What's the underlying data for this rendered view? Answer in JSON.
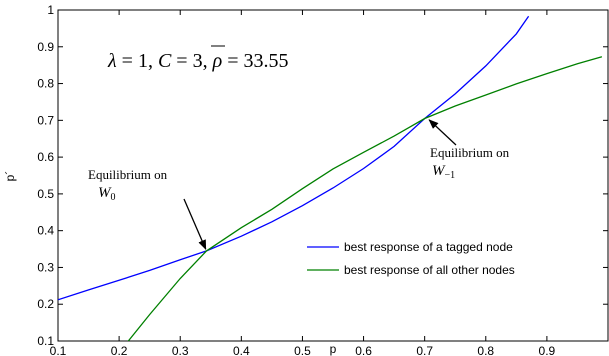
{
  "chart_data": {
    "type": "line",
    "xlabel": "p",
    "ylabel": "p´",
    "xlim": [
      0.1,
      1.0
    ],
    "ylim": [
      0.1,
      1.0
    ],
    "xticks": [
      "0.1",
      "0.2",
      "0.3",
      "0.4",
      "0.5",
      "0.6",
      "0.7",
      "0.8",
      "0.9"
    ],
    "yticks": [
      "0.1",
      "0.2",
      "0.3",
      "0.4",
      "0.5",
      "0.6",
      "0.7",
      "0.8",
      "0.9",
      "1"
    ],
    "grid": false,
    "legend_position": "bottom-right",
    "series": [
      {
        "name": "best response of a tagged node",
        "color": "#0000ff",
        "x": [
          0.1,
          0.15,
          0.2,
          0.25,
          0.3,
          0.343,
          0.4,
          0.45,
          0.5,
          0.55,
          0.6,
          0.65,
          0.7,
          0.75,
          0.8,
          0.85,
          0.87
        ],
        "y": [
          0.212,
          0.239,
          0.265,
          0.292,
          0.321,
          0.345,
          0.385,
          0.424,
          0.468,
          0.516,
          0.569,
          0.629,
          0.705,
          0.772,
          0.848,
          0.935,
          0.983
        ]
      },
      {
        "name": "best response of all other nodes",
        "color": "#008000",
        "x": [
          0.215,
          0.25,
          0.3,
          0.343,
          0.4,
          0.45,
          0.5,
          0.55,
          0.6,
          0.65,
          0.7,
          0.75,
          0.8,
          0.85,
          0.9,
          0.95,
          0.99
        ],
        "y": [
          0.1,
          0.172,
          0.27,
          0.345,
          0.408,
          0.458,
          0.514,
          0.568,
          0.613,
          0.657,
          0.705,
          0.739,
          0.769,
          0.799,
          0.827,
          0.854,
          0.873
        ]
      }
    ],
    "parameter_text": {
      "lambda": "λ",
      "eq": " = 1, ",
      "cbar": "C",
      "eq2": " = 3, ",
      "rho": "ρ",
      "eq3": " = 33.55"
    },
    "annotations": [
      {
        "line1": "Equilibrium on",
        "sym": "W",
        "sub": "0",
        "x": 0.343,
        "y": 0.345
      },
      {
        "line1": "Equilibrium on",
        "sym": "W",
        "sub": "−1",
        "x": 0.705,
        "y": 0.705
      }
    ]
  }
}
